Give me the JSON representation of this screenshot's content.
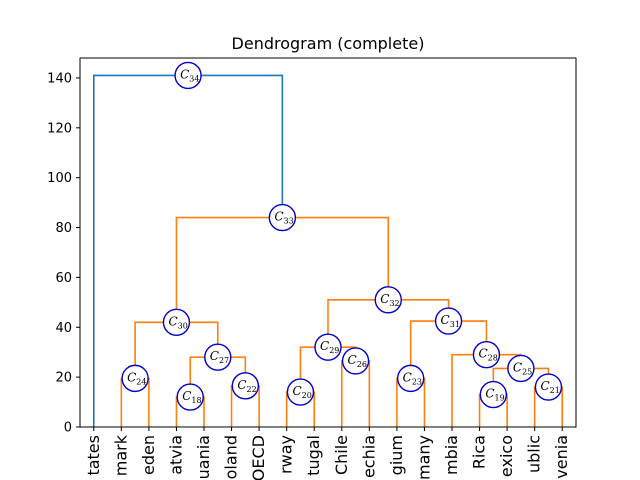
{
  "chart_data": {
    "type": "dendrogram",
    "title": "Dendrogram (complete)",
    "ylim": [
      0,
      148
    ],
    "yticks": [
      0,
      20,
      40,
      60,
      80,
      100,
      120,
      140
    ],
    "leaves": [
      "tates",
      "mark",
      "eden",
      "atvia",
      "uania",
      "oland",
      "OECD",
      "rway",
      "tugal",
      "Chile",
      "echia",
      "gium",
      "many",
      "mbia",
      "Rica",
      "exico",
      "ublic",
      "venia"
    ],
    "colors": {
      "root": "#1f77b4",
      "clusters": "#ff7f0e",
      "node_circle": "#0000cc"
    },
    "merges": [
      {
        "id": "C18",
        "left": 3,
        "right": 4,
        "height": 12
      },
      {
        "id": "C19",
        "left": 14,
        "right": 15,
        "height": 13
      },
      {
        "id": "C20",
        "left": 7,
        "right": 8,
        "height": 14
      },
      {
        "id": "C21",
        "left": 16,
        "right": 17,
        "height": 16
      },
      {
        "id": "C22",
        "left": 5,
        "right": 6,
        "height": 16.5
      },
      {
        "id": "C23",
        "left": 11,
        "right": 12,
        "height": 19.5
      },
      {
        "id": "C24",
        "left": 1,
        "right": 2,
        "height": 19.5
      },
      {
        "id": "C25",
        "left": "C19",
        "right": "C21",
        "height": 23.5
      },
      {
        "id": "C26",
        "left": 9,
        "right": 10,
        "height": 26.5
      },
      {
        "id": "C27",
        "left": "C18",
        "right": "C22",
        "height": 28
      },
      {
        "id": "C28",
        "left": 13,
        "right": "C25",
        "height": 29
      },
      {
        "id": "C29",
        "left": "C20",
        "right": "C26",
        "height": 32
      },
      {
        "id": "C30",
        "left": "C24",
        "right": "C27",
        "height": 42
      },
      {
        "id": "C31",
        "left": "C23",
        "right": "C28",
        "height": 42.5
      },
      {
        "id": "C32",
        "left": "C29",
        "right": "C31",
        "height": 51
      },
      {
        "id": "C33",
        "left": "C30",
        "right": "C32",
        "height": 84
      },
      {
        "id": "C34",
        "left": 0,
        "right": "C33",
        "height": 141,
        "root": true
      }
    ]
  }
}
